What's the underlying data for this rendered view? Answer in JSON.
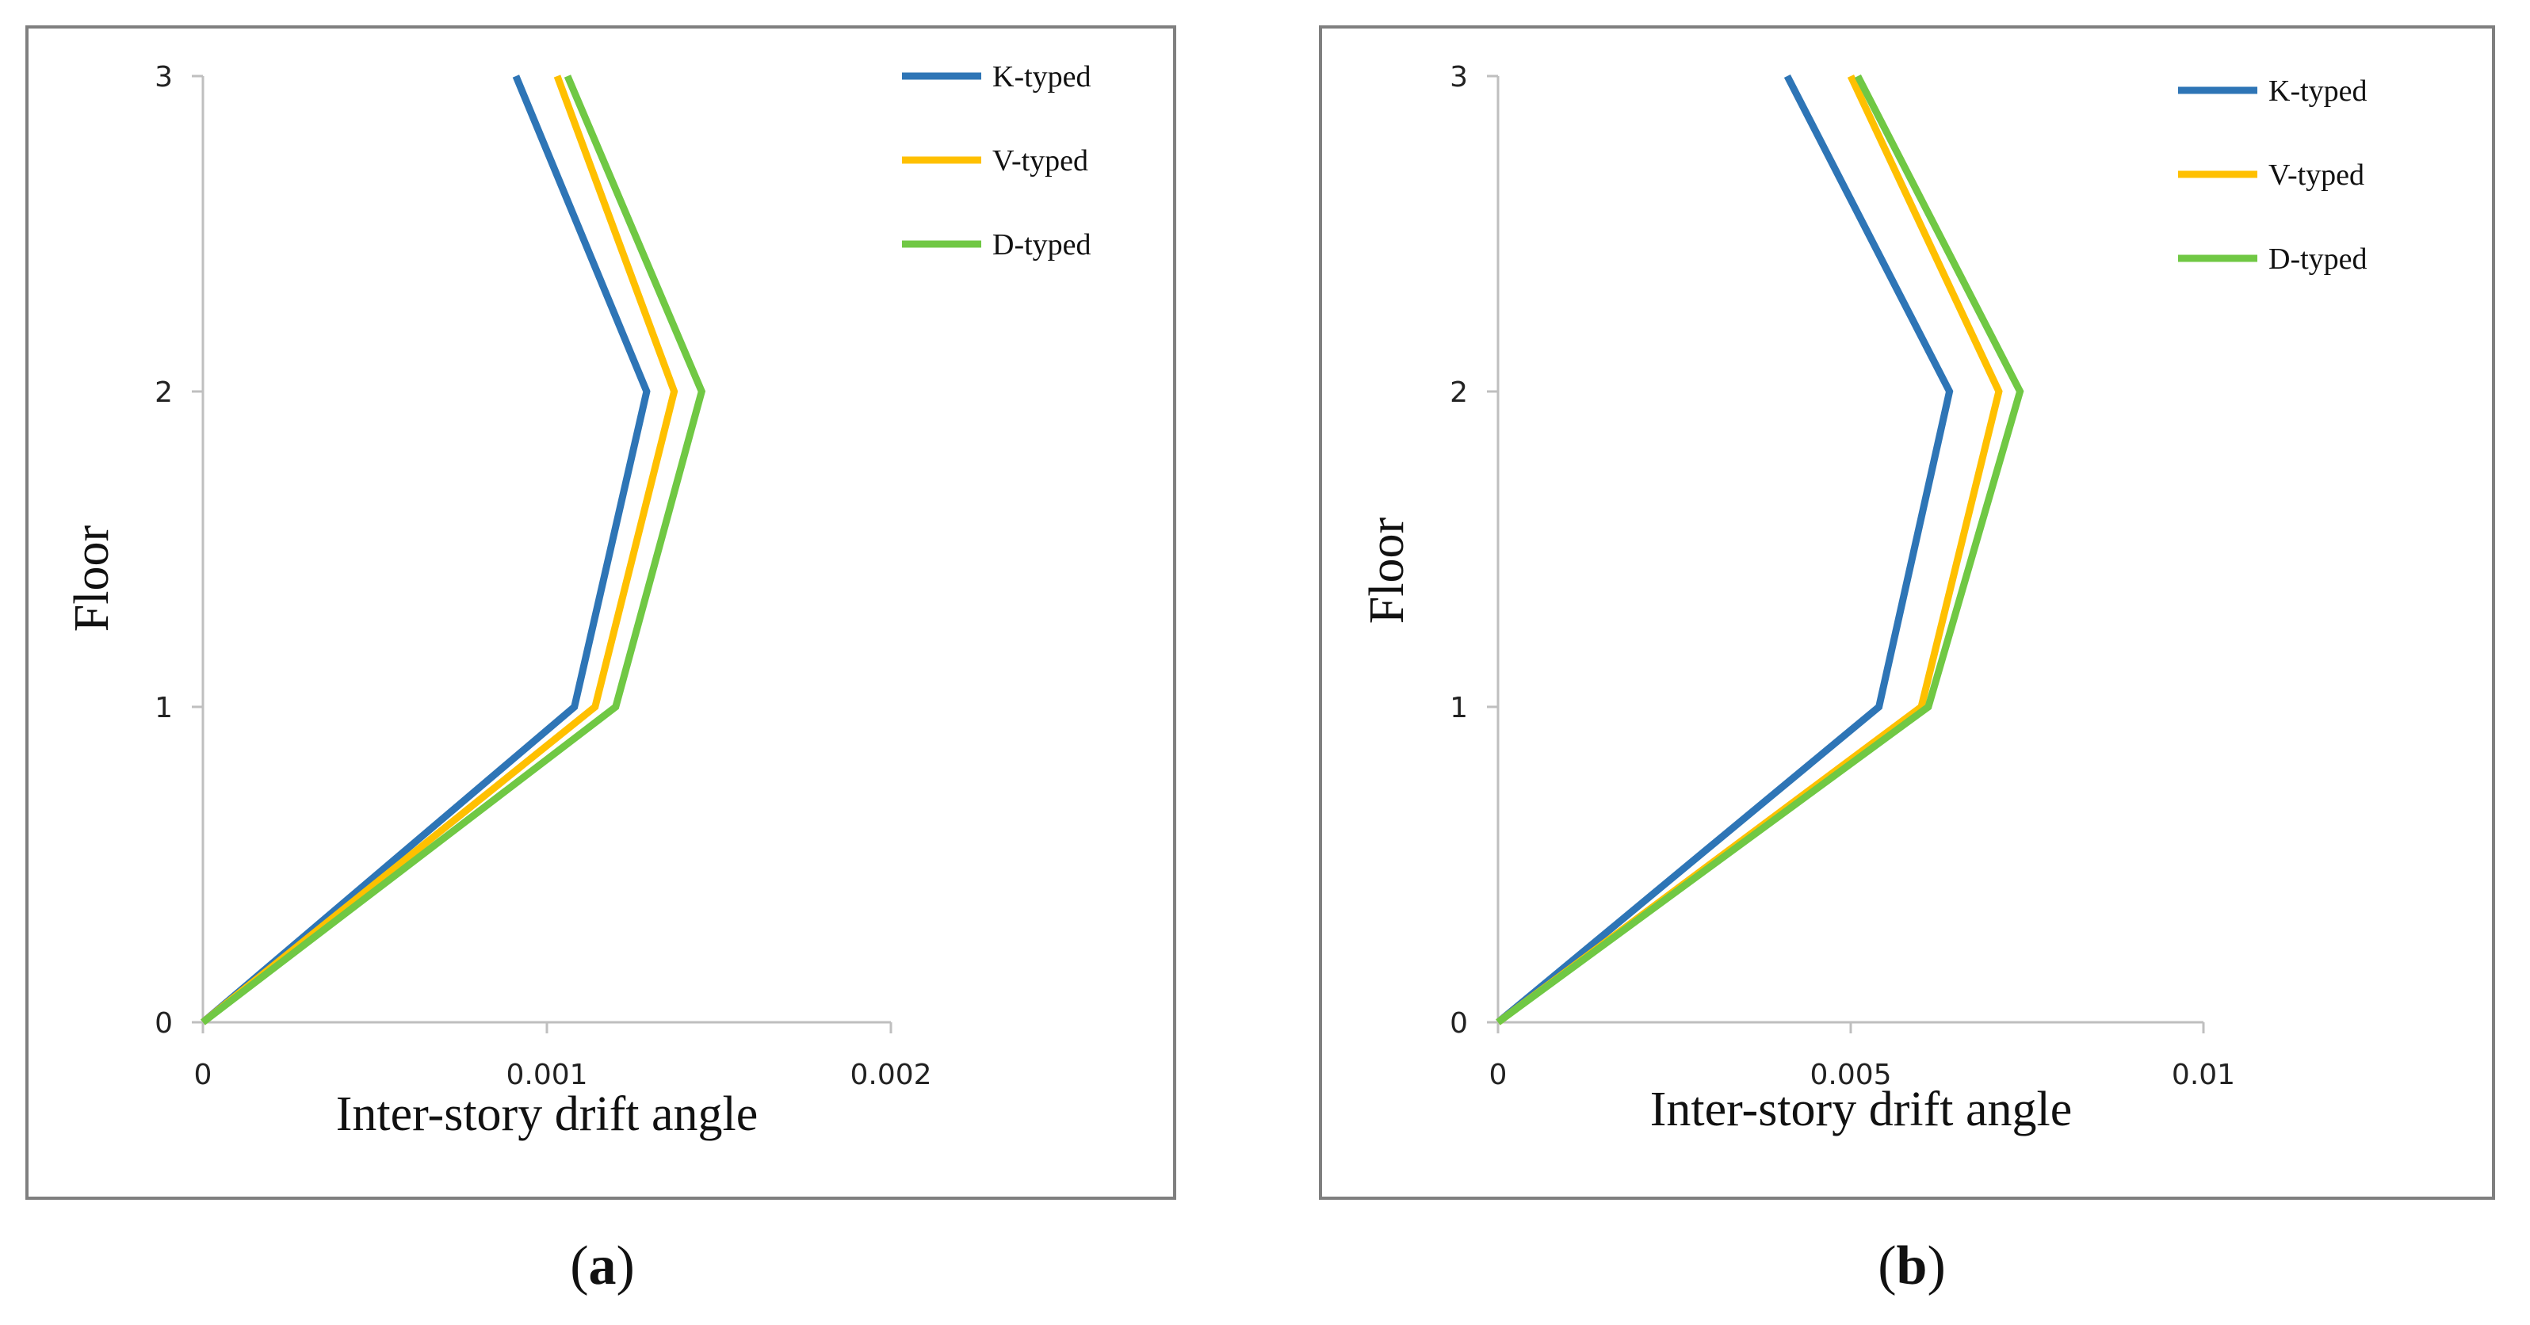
{
  "chart_data": [
    {
      "type": "line",
      "caption": "a",
      "xlabel": "Inter-story drift angle",
      "ylabel": "Floor",
      "xlim": [
        0,
        0.002
      ],
      "ylim": [
        0,
        3
      ],
      "x_ticks": [
        "0",
        "0.001",
        "0.002"
      ],
      "y_ticks": [
        "0",
        "1",
        "2",
        "3"
      ],
      "legend_position": "top-right",
      "series": [
        {
          "name": "K-typed",
          "color": "#2E75B6",
          "x": [
            0,
            0.00108,
            0.00129,
            0.00091
          ],
          "y": [
            0,
            1,
            2,
            3
          ]
        },
        {
          "name": "V-typed",
          "color": "#FFC000",
          "x": [
            0,
            0.00114,
            0.00137,
            0.00103
          ],
          "y": [
            0,
            1,
            2,
            3
          ]
        },
        {
          "name": "D-typed",
          "color": "#70C844",
          "x": [
            0,
            0.0012,
            0.00145,
            0.00106
          ],
          "y": [
            0,
            1,
            2,
            3
          ]
        }
      ]
    },
    {
      "type": "line",
      "caption": "b",
      "xlabel": "Inter-story drift angle",
      "ylabel": "Floor",
      "xlim": [
        0,
        0.01
      ],
      "ylim": [
        0,
        3
      ],
      "x_ticks": [
        "0",
        "0.005",
        "0.01"
      ],
      "y_ticks": [
        "0",
        "1",
        "2",
        "3"
      ],
      "legend_position": "top-right",
      "series": [
        {
          "name": "K-typed",
          "color": "#2E75B6",
          "x": [
            0,
            0.0054,
            0.0064,
            0.0041
          ],
          "y": [
            0,
            1,
            2,
            3
          ]
        },
        {
          "name": "V-typed",
          "color": "#FFC000",
          "x": [
            0,
            0.006,
            0.0071,
            0.005
          ],
          "y": [
            0,
            1,
            2,
            3
          ]
        },
        {
          "name": "D-typed",
          "color": "#70C844",
          "x": [
            0,
            0.0061,
            0.0074,
            0.0051
          ],
          "y": [
            0,
            1,
            2,
            3
          ]
        }
      ]
    }
  ]
}
